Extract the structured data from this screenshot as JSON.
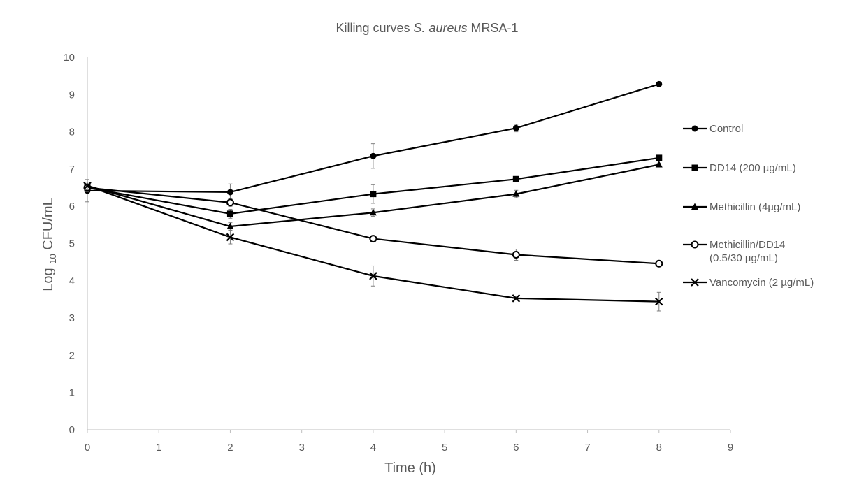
{
  "chart_data": {
    "type": "line",
    "title": {
      "prefix": "Killing curves ",
      "italic": "S. aureus",
      "suffix": " MRSA-1"
    },
    "xlabel": "Time (h)",
    "ylabel": {
      "prefix": "Log ",
      "subscript": "10",
      "suffix": " CFU/mL"
    },
    "xlim": [
      0,
      9
    ],
    "ylim": [
      0,
      10
    ],
    "xticks": [
      0,
      1,
      2,
      3,
      4,
      5,
      6,
      7,
      8,
      9
    ],
    "yticks": [
      0,
      1,
      2,
      3,
      4,
      5,
      6,
      7,
      8,
      9,
      10
    ],
    "grid": false,
    "legend_position": "right",
    "line_color": "#000000",
    "series": [
      {
        "name": "Control",
        "marker": "filled-circle",
        "x": [
          0,
          2,
          4,
          6,
          8
        ],
        "y": [
          6.42,
          6.38,
          7.35,
          8.1,
          9.28
        ],
        "err": [
          0.3,
          0.22,
          0.33,
          0.1,
          0.04
        ]
      },
      {
        "name": "DD14 (200 µg/mL)",
        "marker": "filled-square",
        "x": [
          0,
          2,
          4,
          6,
          8
        ],
        "y": [
          6.5,
          5.8,
          6.33,
          6.73,
          7.3
        ],
        "err": [
          0.1,
          0.12,
          0.25,
          0.05,
          0.04
        ]
      },
      {
        "name": "Methicillin (4µg/mL)",
        "marker": "filled-triangle",
        "x": [
          0,
          2,
          4,
          6,
          8
        ],
        "y": [
          6.55,
          5.46,
          5.83,
          6.33,
          7.12
        ],
        "err": [
          0.1,
          0.1,
          0.1,
          0.1,
          0.04
        ]
      },
      {
        "name": "Methicillin/DD14",
        "name_line2": "(0.5/30 µg/mL)",
        "marker": "open-circle",
        "x": [
          0,
          2,
          4,
          6,
          8
        ],
        "y": [
          6.5,
          6.1,
          5.13,
          4.7,
          4.46
        ],
        "err": [
          0.1,
          0.1,
          0.08,
          0.15,
          0.08
        ]
      },
      {
        "name": "Vancomycin (2 µg/mL)",
        "marker": "x",
        "x": [
          0,
          2,
          4,
          6,
          8
        ],
        "y": [
          6.55,
          5.17,
          4.13,
          3.53,
          3.44
        ],
        "err": [
          0.1,
          0.18,
          0.27,
          0.05,
          0.25
        ]
      }
    ]
  }
}
